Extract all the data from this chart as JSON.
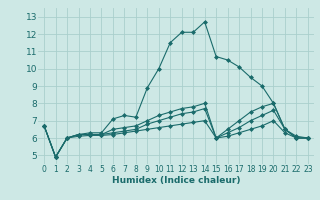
{
  "title": "",
  "xlabel": "Humidex (Indice chaleur)",
  "xlim": [
    -0.5,
    23.5
  ],
  "ylim": [
    4.5,
    13.5
  ],
  "xticks": [
    0,
    1,
    2,
    3,
    4,
    5,
    6,
    7,
    8,
    9,
    10,
    11,
    12,
    13,
    14,
    15,
    16,
    17,
    18,
    19,
    20,
    21,
    22,
    23
  ],
  "yticks": [
    5,
    6,
    7,
    8,
    9,
    10,
    11,
    12,
    13
  ],
  "background_color": "#cde8e5",
  "grid_color": "#aacfcc",
  "line_color": "#1a6b6b",
  "lines": [
    {
      "x": [
        0,
        1,
        2,
        3,
        4,
        5,
        6,
        7,
        8,
        9,
        10,
        11,
        12,
        13,
        14,
        15,
        16,
        17,
        18,
        19,
        20,
        21,
        22,
        23
      ],
      "y": [
        6.7,
        4.9,
        6.0,
        6.2,
        6.3,
        6.3,
        7.1,
        7.3,
        7.2,
        8.9,
        10.0,
        11.5,
        12.1,
        12.1,
        12.7,
        10.7,
        10.5,
        10.1,
        9.5,
        9.0,
        8.0,
        6.5,
        6.0,
        6.0
      ]
    },
    {
      "x": [
        0,
        1,
        2,
        3,
        4,
        5,
        6,
        7,
        8,
        9,
        10,
        11,
        12,
        13,
        14,
        15,
        16,
        17,
        18,
        19,
        20,
        21,
        22,
        23
      ],
      "y": [
        6.7,
        4.9,
        6.0,
        6.2,
        6.2,
        6.2,
        6.5,
        6.6,
        6.7,
        7.0,
        7.3,
        7.5,
        7.7,
        7.8,
        8.0,
        6.0,
        6.5,
        7.0,
        7.5,
        7.8,
        8.0,
        6.5,
        6.1,
        6.0
      ]
    },
    {
      "x": [
        0,
        1,
        2,
        3,
        4,
        5,
        6,
        7,
        8,
        9,
        10,
        11,
        12,
        13,
        14,
        15,
        16,
        17,
        18,
        19,
        20,
        21,
        22,
        23
      ],
      "y": [
        6.7,
        4.9,
        6.0,
        6.2,
        6.2,
        6.2,
        6.3,
        6.4,
        6.5,
        6.8,
        7.0,
        7.2,
        7.4,
        7.5,
        7.7,
        6.0,
        6.3,
        6.6,
        7.0,
        7.3,
        7.6,
        6.5,
        6.0,
        6.0
      ]
    },
    {
      "x": [
        0,
        1,
        2,
        3,
        4,
        5,
        6,
        7,
        8,
        9,
        10,
        11,
        12,
        13,
        14,
        15,
        16,
        17,
        18,
        19,
        20,
        21,
        22,
        23
      ],
      "y": [
        6.7,
        4.9,
        6.0,
        6.1,
        6.15,
        6.15,
        6.2,
        6.3,
        6.4,
        6.5,
        6.6,
        6.7,
        6.8,
        6.9,
        7.0,
        6.0,
        6.1,
        6.3,
        6.5,
        6.7,
        7.0,
        6.3,
        6.0,
        6.0
      ]
    }
  ]
}
